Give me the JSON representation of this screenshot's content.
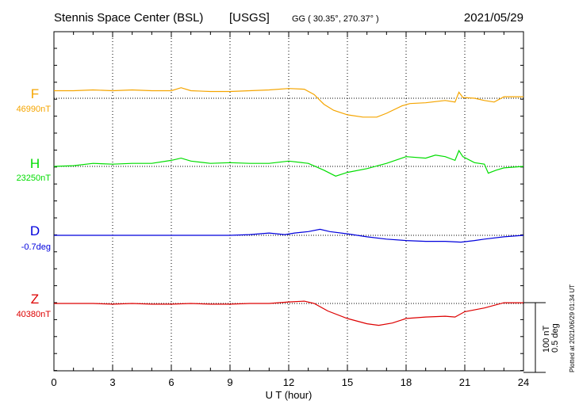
{
  "header": {
    "station": "Stennis Space Center (BSL)",
    "agency": "[USGS]",
    "coords": "GG ( 30.35°, 270.37° )",
    "date": "2021/05/29"
  },
  "scale": {
    "nt_label": "100 nT",
    "deg_label": "0.5 deg"
  },
  "plotted_note": "Plotted at 2021/06/29 01:34 UT",
  "colors": {
    "F": "#f5a500",
    "H": "#00dd00",
    "D": "#0000dd",
    "Z": "#dd0000",
    "axis": "#000000",
    "grid": "#000000"
  },
  "chart_data": {
    "type": "line",
    "xlabel": "U T (hour)",
    "xlim": [
      0,
      24
    ],
    "xticks": [
      "0",
      "3",
      "6",
      "9",
      "12",
      "15",
      "18",
      "21",
      "24"
    ],
    "grid": "dotted",
    "series": [
      {
        "name": "F",
        "baseline_label": "46990nT",
        "unit": "nT",
        "baseline": 46990,
        "x": [
          0,
          1,
          2,
          3,
          4,
          5,
          6,
          6.5,
          7,
          8,
          9,
          10,
          11,
          12,
          12.8,
          13.3,
          13.8,
          14.3,
          15,
          15.8,
          16.5,
          17,
          17.8,
          18.2,
          19,
          20,
          20.5,
          20.7,
          20.9,
          21.5,
          22,
          22.5,
          23,
          24
        ],
        "y": [
          10,
          10,
          11,
          10,
          11,
          10,
          10,
          14,
          10,
          9,
          9,
          10,
          11,
          13,
          12,
          5,
          -8,
          -16,
          -22,
          -25,
          -25,
          -20,
          -10,
          -7,
          -6,
          -3,
          -5,
          8,
          1,
          0,
          -3,
          -5,
          2,
          2
        ]
      },
      {
        "name": "H",
        "baseline_label": "23250nT",
        "unit": "nT",
        "baseline": 23250,
        "x": [
          0,
          1,
          2,
          3,
          4,
          5,
          6,
          6.5,
          7,
          8,
          9,
          10,
          11,
          12,
          13,
          13.8,
          14.4,
          15,
          16,
          17,
          18,
          19,
          19.5,
          20,
          20.5,
          20.7,
          20.9,
          21.5,
          22,
          22.2,
          22.6,
          23,
          24
        ],
        "y": [
          0,
          1,
          4,
          3,
          4,
          4,
          8,
          11,
          7,
          4,
          5,
          4,
          4,
          7,
          4,
          -5,
          -13,
          -8,
          -3,
          4,
          13,
          11,
          15,
          13,
          8,
          21,
          13,
          5,
          3,
          -9,
          -5,
          -2,
          0
        ]
      },
      {
        "name": "D",
        "baseline_label": "-0.7deg",
        "unit": "deg",
        "baseline": -0.7,
        "x": [
          0,
          1,
          2,
          3,
          4,
          5,
          6,
          7,
          8,
          9,
          10,
          11,
          11.8,
          12.3,
          13,
          13.6,
          14.1,
          15,
          16,
          17,
          18,
          19,
          20,
          20.8,
          21.5,
          22,
          23,
          24
        ],
        "y": [
          0,
          0,
          0,
          0,
          0,
          0,
          0,
          0,
          0,
          0,
          0.01,
          0.03,
          0.01,
          0.03,
          0.05,
          0.08,
          0.05,
          0.02,
          -0.02,
          -0.05,
          -0.07,
          -0.08,
          -0.08,
          -0.09,
          -0.07,
          -0.05,
          -0.02,
          0
        ]
      },
      {
        "name": "Z",
        "baseline_label": "40380nT",
        "unit": "nT",
        "baseline": 40380,
        "x": [
          0,
          1,
          2,
          3,
          4,
          5,
          6,
          7,
          8,
          9,
          10,
          11,
          12,
          12.8,
          13.3,
          14,
          15,
          16,
          16.6,
          17.3,
          18,
          19,
          20,
          20.5,
          21,
          22,
          23,
          24
        ],
        "y": [
          0,
          0,
          0,
          -1,
          0,
          -1,
          -1,
          0,
          -1,
          -1,
          0,
          0,
          2,
          3,
          0,
          -10,
          -20,
          -27,
          -29,
          -26,
          -20,
          -18,
          -17,
          -18,
          -11,
          -6,
          1,
          1
        ]
      }
    ]
  }
}
